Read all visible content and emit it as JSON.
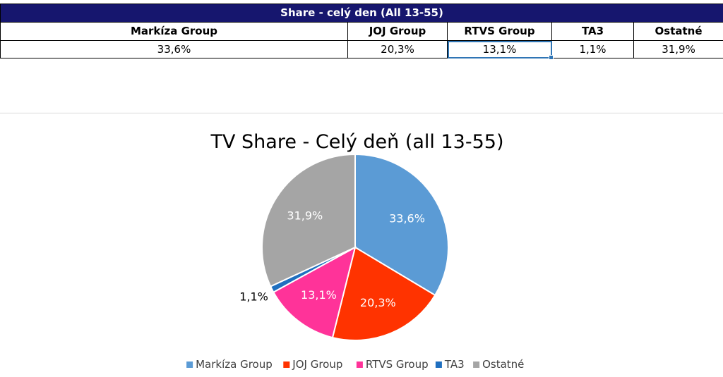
{
  "table": {
    "title": "Share - celý den (All 13-55)",
    "headers": [
      "Markíza Group",
      "JOJ Group",
      "RTVS Group",
      "TA3",
      "Ostatné"
    ],
    "values": [
      "33,6%",
      "20,3%",
      "13,1%",
      "1,1%",
      "31,9%"
    ],
    "selected_column": "RTVS Group"
  },
  "chart_data": {
    "type": "pie",
    "title": "TV Share - Celý deň (all 13-55)",
    "categories": [
      "Markíza Group",
      "JOJ Group",
      "RTVS Group",
      "TA3",
      "Ostatné"
    ],
    "values": [
      33.6,
      20.3,
      13.1,
      1.1,
      31.9
    ],
    "data_labels": [
      "33,6%",
      "20,3%",
      "13,1%",
      "1,1%",
      "31,9%"
    ],
    "colors": [
      "#5b9bd5",
      "#ff3300",
      "#ff3399",
      "#1f6fbf",
      "#a5a5a5"
    ],
    "label_colors": [
      "#ffffff",
      "#ffffff",
      "#ffffff",
      "#000000",
      "#ffffff"
    ],
    "legend_position": "bottom",
    "start_angle_deg": 0,
    "direction": "clockwise"
  }
}
